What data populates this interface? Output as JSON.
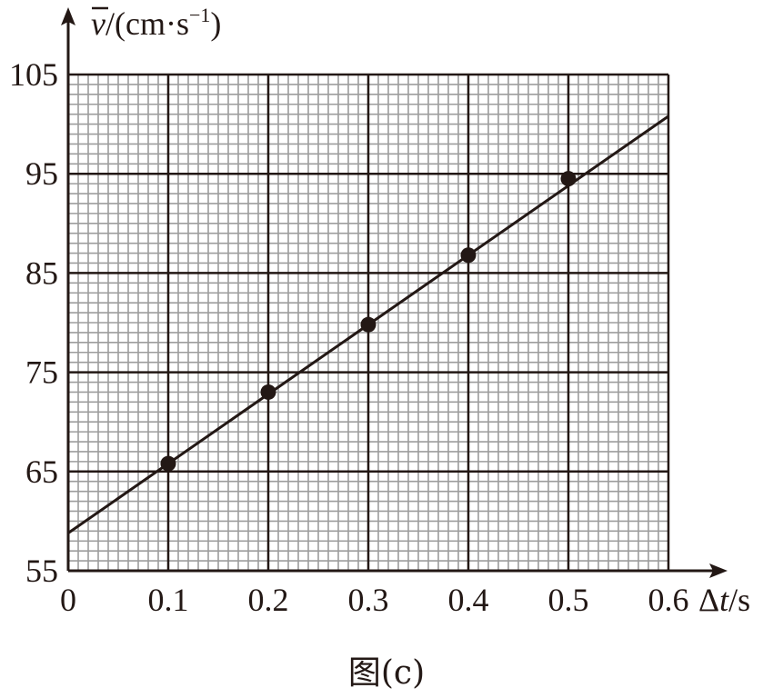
{
  "chart_data": {
    "type": "scatter",
    "x_ticks": [
      "0",
      "0.1",
      "0.2",
      "0.3",
      "0.4",
      "0.5",
      "0.6"
    ],
    "y_ticks": [
      "55",
      "65",
      "75",
      "85",
      "95",
      "105"
    ],
    "xlim": [
      0,
      0.6
    ],
    "ylim": [
      55,
      105
    ],
    "grid": true,
    "y_axis_label": {
      "symbol": "v",
      "rest": "/(cm·s",
      "exp": "−1",
      "close": ")"
    },
    "x_axis_label": {
      "delta": "Δ",
      "symbol": "t",
      "unit": "/s"
    },
    "caption": "图(c)",
    "points": [
      {
        "x": 0.1,
        "y": 65.8
      },
      {
        "x": 0.2,
        "y": 73.0
      },
      {
        "x": 0.3,
        "y": 79.8
      },
      {
        "x": 0.4,
        "y": 86.8
      },
      {
        "x": 0.5,
        "y": 94.5
      }
    ],
    "fit_line": {
      "x": [
        0,
        0.6
      ],
      "y": [
        58.8,
        100.8
      ]
    }
  }
}
